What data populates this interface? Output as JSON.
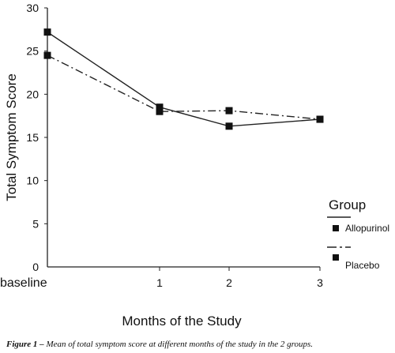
{
  "chart_data": {
    "type": "line",
    "categories": [
      "baseline",
      "1",
      "2",
      "3"
    ],
    "series": [
      {
        "name": "Allopurinol",
        "values": [
          27.2,
          18.5,
          16.3,
          17.1
        ],
        "line_style": "solid"
      },
      {
        "name": "Placebo",
        "values": [
          24.5,
          18.0,
          18.1,
          17.1
        ],
        "line_style": "dash-dot"
      }
    ],
    "xlabel": "Months of the Study",
    "ylabel": "Total Symptom Score",
    "ylim": [
      0,
      30
    ],
    "yticks": [
      0,
      5,
      10,
      15,
      20,
      25,
      30
    ],
    "grid": false,
    "legend": {
      "title": "Group",
      "placement": "right"
    },
    "colors": {
      "line": "#222222",
      "marker": "#111111"
    }
  },
  "caption": {
    "label": "Figure 1 –",
    "text": "Mean of total symptom score at different months of the study in the 2 groups."
  }
}
